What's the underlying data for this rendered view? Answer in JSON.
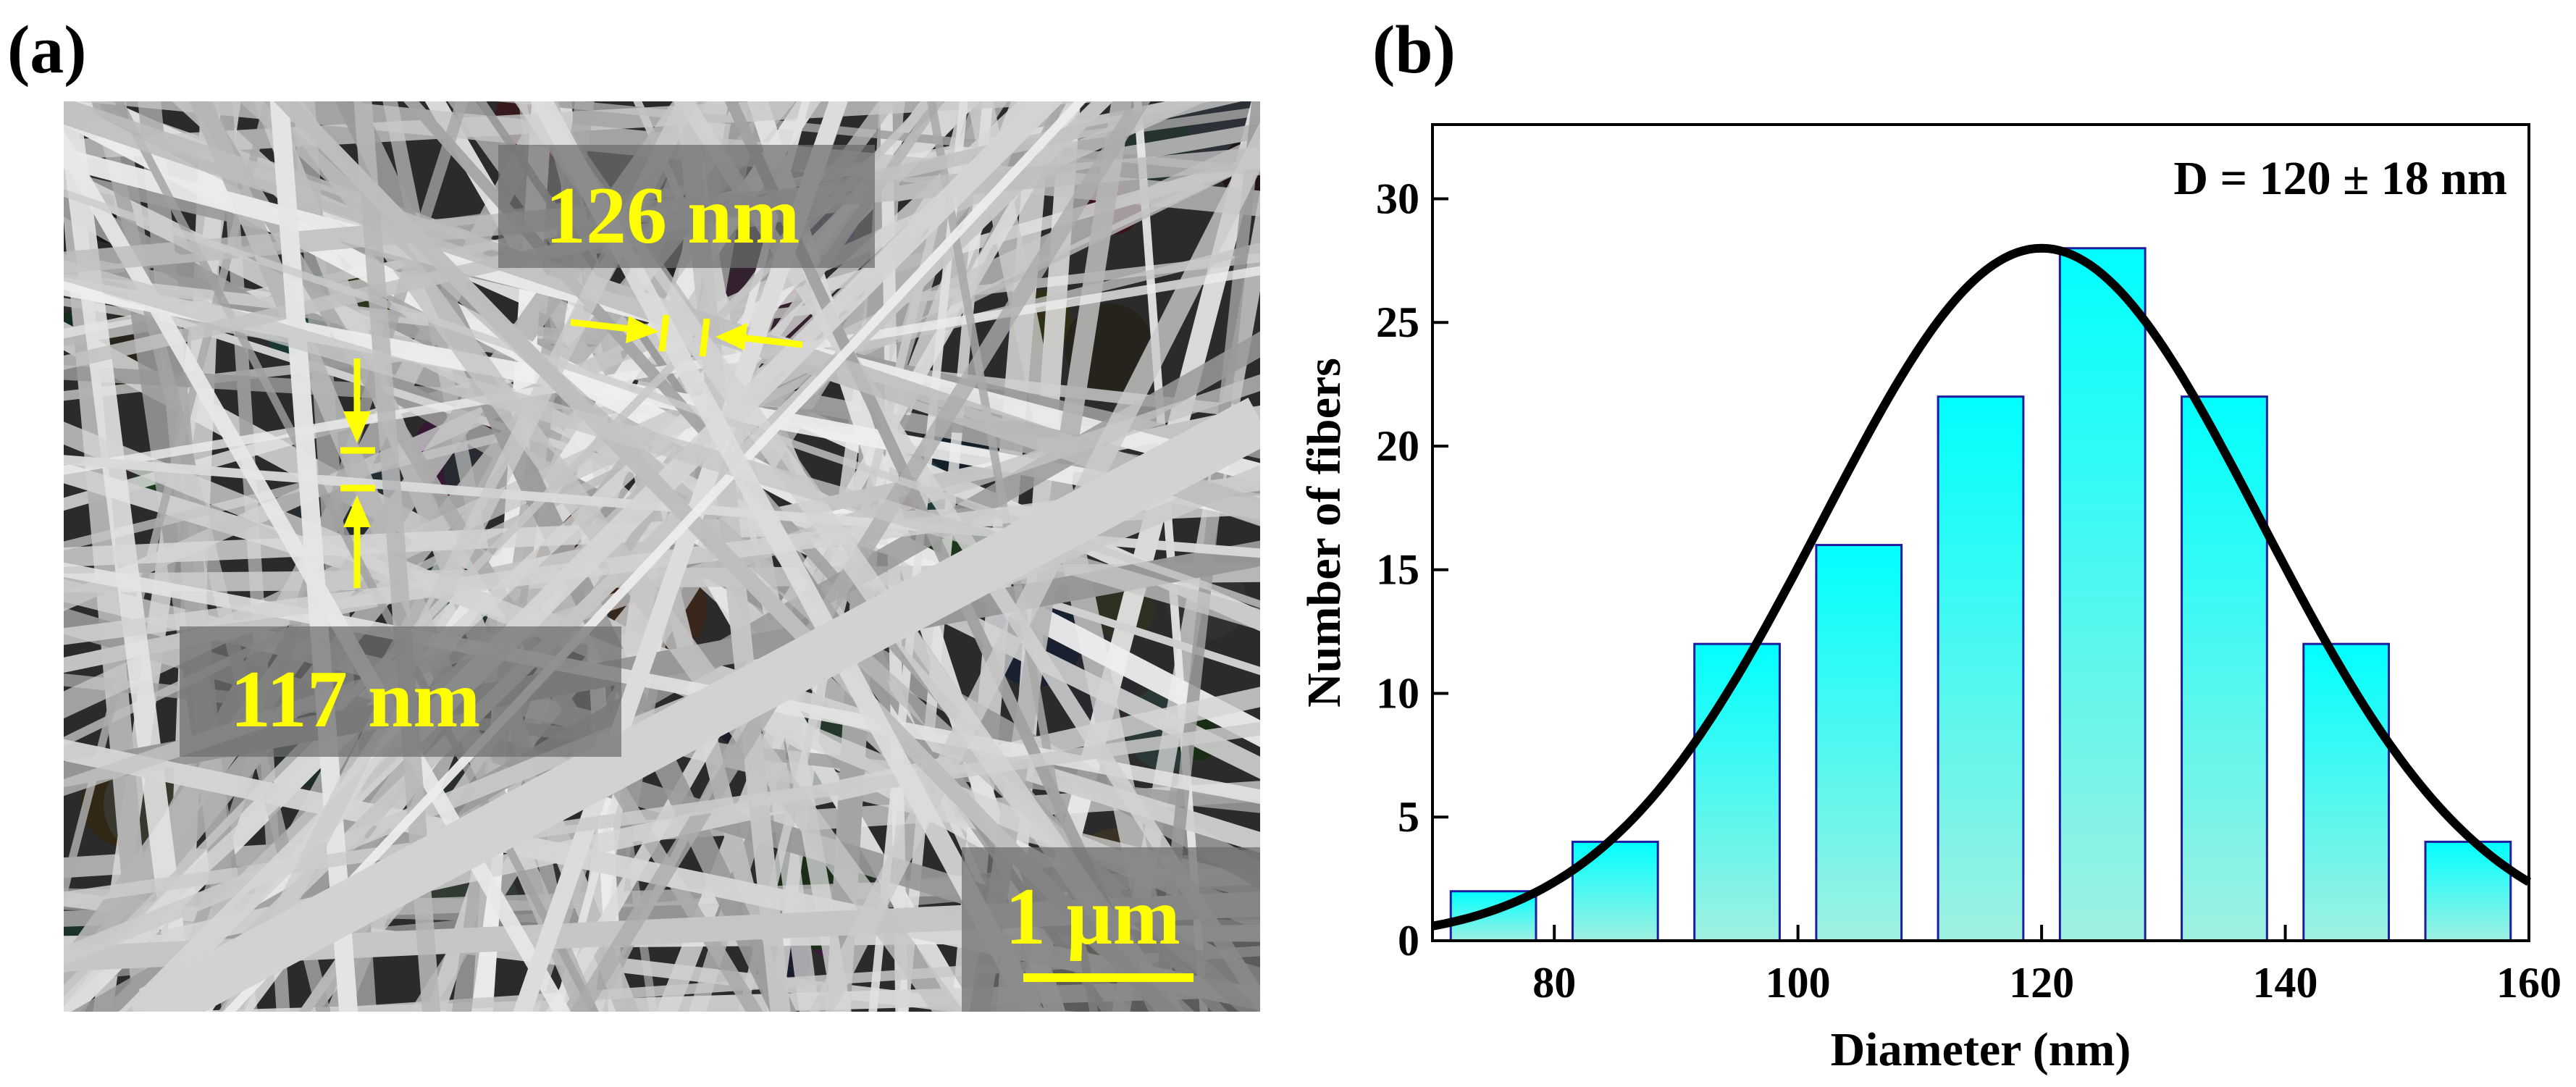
{
  "panel_a": {
    "label": "(a)",
    "measure1": "126 nm",
    "measure2": "117 nm",
    "scale_bar": "1 µm",
    "accent_color": "#ffff00"
  },
  "panel_b": {
    "label": "(b)"
  },
  "chart_data": {
    "type": "bar",
    "title": "",
    "annotation": "D = 120 ± 18 nm",
    "xlabel": "Diameter (nm)",
    "ylabel": "Number of fibers",
    "xlim": [
      70,
      160
    ],
    "ylim": [
      0,
      33
    ],
    "xticks": [
      80,
      100,
      120,
      140,
      160
    ],
    "yticks": [
      0,
      5,
      10,
      15,
      20,
      25,
      30
    ],
    "bin_width": 7,
    "x": [
      75,
      85,
      95,
      105,
      115,
      125,
      135,
      145,
      155
    ],
    "values": [
      2,
      4,
      12,
      16,
      22,
      28,
      22,
      12,
      4
    ],
    "fit": {
      "type": "gaussian",
      "mean": 120,
      "sd": 18,
      "peak": 28
    },
    "bar_color_top": "#00ffff",
    "bar_color_bottom": "#9ff0e0",
    "bar_edge_color": "#1c1ca0",
    "curve_color": "#000000"
  }
}
